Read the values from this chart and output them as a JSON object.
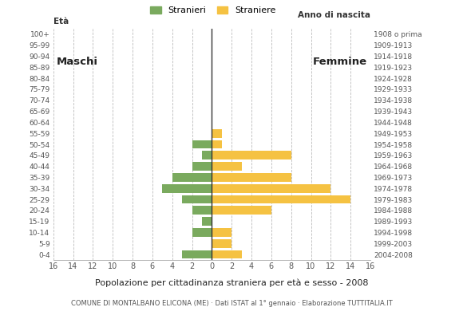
{
  "age_groups": [
    "0-4",
    "5-9",
    "10-14",
    "15-19",
    "20-24",
    "25-29",
    "30-34",
    "35-39",
    "40-44",
    "45-49",
    "50-54",
    "55-59",
    "60-64",
    "65-69",
    "70-74",
    "75-79",
    "80-84",
    "85-89",
    "90-94",
    "95-99",
    "100+"
  ],
  "birth_years": [
    "2004-2008",
    "1999-2003",
    "1994-1998",
    "1989-1993",
    "1984-1988",
    "1979-1983",
    "1974-1978",
    "1969-1973",
    "1964-1968",
    "1959-1963",
    "1954-1958",
    "1949-1953",
    "1944-1948",
    "1939-1943",
    "1934-1938",
    "1929-1933",
    "1924-1928",
    "1919-1923",
    "1914-1918",
    "1909-1913",
    "1908 o prima"
  ],
  "males": [
    3,
    0,
    2,
    1,
    2,
    3,
    5,
    4,
    2,
    1,
    2,
    0,
    0,
    0,
    0,
    0,
    0,
    0,
    0,
    0,
    0
  ],
  "females": [
    3,
    2,
    2,
    0,
    6,
    14,
    12,
    8,
    3,
    8,
    1,
    1,
    0,
    0,
    0,
    0,
    0,
    0,
    0,
    0,
    0
  ],
  "male_color": "#7aaa5e",
  "female_color": "#f5c242",
  "grid_color": "#bbbbbb",
  "background_color": "#ffffff",
  "title": "Popolazione per cittadinanza straniera per eta e sesso - 2008",
  "title_display": "Popolazione per cittadinanza straniera per età e sesso - 2008",
  "subtitle": "COMUNE DI MONTALBANO ELICONA (ME) · Dati ISTAT al 1° gennaio · Elaborazione TUTTITALIA.IT",
  "legend_male": "Stranieri",
  "legend_female": "Straniere",
  "label_maschi": "Maschi",
  "label_femmine": "Femmine",
  "axis_label_eta": "Età",
  "axis_label_anno": "Anno di nascita",
  "xlim": 16
}
